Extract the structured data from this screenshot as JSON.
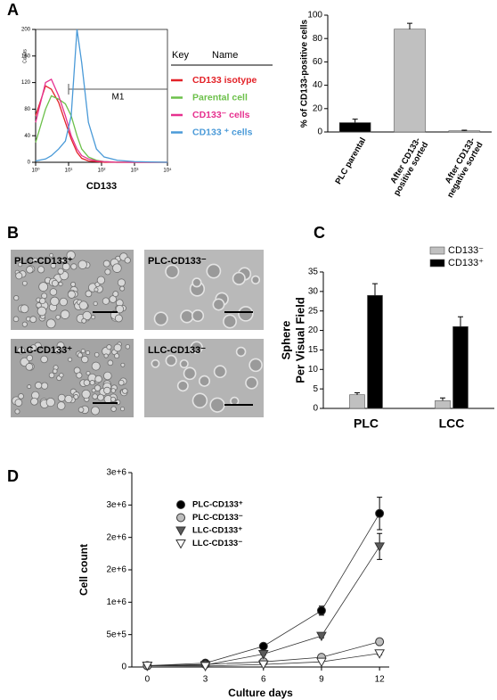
{
  "panel_labels": [
    "A",
    "B",
    "C",
    "D"
  ],
  "micrographs": [
    "PLC-CD133⁺",
    "PLC-CD133⁻",
    "LLC-CD133⁺",
    "LLC-CD133⁻"
  ],
  "chart_data": [
    {
      "type": "line",
      "xscale": "log",
      "xlabel": "CD133",
      "ylabel": "Counts",
      "x": [
        1,
        2,
        3,
        5,
        8,
        12,
        18,
        25,
        40,
        70,
        120,
        300,
        1000,
        10000
      ],
      "xlim": [
        1,
        10000
      ],
      "xticks": [
        {
          "value": 1,
          "label": "10⁰"
        },
        {
          "value": 10,
          "label": "10¹"
        },
        {
          "value": 100,
          "label": "10²"
        },
        {
          "value": 1000,
          "label": "10³"
        },
        {
          "value": 10000,
          "label": "10⁴"
        }
      ],
      "ylim": [
        0,
        200
      ],
      "yticks": [
        0,
        40,
        80,
        120,
        160,
        200
      ],
      "legend_headers": [
        "Key",
        "Name"
      ],
      "gate": {
        "label": "M1",
        "x": [
          10,
          10000
        ],
        "y": 110
      },
      "series": [
        {
          "name": "CD133 isotype",
          "color": "#e32228",
          "values": [
            70,
            115,
            110,
            90,
            60,
            35,
            15,
            6,
            2,
            1,
            0,
            0,
            0,
            0
          ]
        },
        {
          "name": "Parental cell",
          "color": "#6cc04a",
          "values": [
            30,
            80,
            100,
            95,
            88,
            70,
            40,
            20,
            8,
            3,
            1,
            0,
            0,
            0
          ]
        },
        {
          "name": "CD133⁻ cells",
          "color": "#e6308f",
          "values": [
            60,
            120,
            125,
            100,
            70,
            40,
            20,
            10,
            5,
            2,
            1,
            0,
            0,
            0
          ]
        },
        {
          "name": "CD133 ⁺ cells",
          "color": "#4a9ad8",
          "values": [
            2,
            5,
            10,
            20,
            32,
            70,
            200,
            150,
            60,
            20,
            8,
            3,
            1,
            0
          ]
        }
      ]
    },
    {
      "type": "bar",
      "ylabel": "% of CD133-positive cells",
      "categories": [
        "PLC parental",
        "After CD133-positive sorted",
        "After CD133-negative sorted"
      ],
      "values": [
        8,
        88,
        1
      ],
      "errors": [
        3,
        5,
        0.5
      ],
      "colors": [
        "#000000",
        "#c0c0c0",
        "#c0c0c0"
      ],
      "ylim": [
        0,
        100
      ],
      "yticks": [
        0,
        20,
        40,
        60,
        80,
        100
      ]
    },
    {
      "type": "bar",
      "ylabel": [
        "Sphere",
        "Per Visual Field"
      ],
      "categories": [
        "PLC",
        "LCC"
      ],
      "series": [
        {
          "name": "CD133⁻",
          "color": "#c0c0c0",
          "values": [
            3.5,
            2
          ],
          "errors": [
            0.5,
            0.7
          ]
        },
        {
          "name": "CD133⁺",
          "color": "#000000",
          "values": [
            29,
            21
          ],
          "errors": [
            3,
            2.5
          ]
        }
      ],
      "ylim": [
        0,
        35
      ],
      "yticks": [
        0,
        5,
        10,
        15,
        20,
        25,
        30,
        35
      ]
    },
    {
      "type": "line",
      "xlabel": "Culture days",
      "ylabel": "Cell count",
      "x": [
        0,
        3,
        6,
        9,
        12
      ],
      "xlim": [
        -0.8,
        12.5
      ],
      "xticks": [
        0,
        3,
        6,
        9,
        12
      ],
      "ylim": [
        0,
        3000000
      ],
      "yticks": [
        0,
        {
          "value": 500000,
          "label": "5e+5"
        },
        {
          "value": 1000000,
          "label": "1e+6"
        },
        {
          "value": 1500000,
          "label": "2e+6"
        },
        {
          "value": 2000000,
          "label": "2e+6"
        },
        {
          "value": 2500000,
          "label": "3e+6"
        },
        {
          "value": 3000000,
          "label": "3e+6"
        }
      ],
      "series": [
        {
          "name": "PLC-CD133⁺",
          "color": "#000000",
          "marker": "circle",
          "values": [
            20000,
            60000,
            320000,
            870000,
            2370000
          ],
          "errors": [
            5000,
            10000,
            20000,
            70000,
            250000
          ]
        },
        {
          "name": "PLC-CD133⁻",
          "color": "#bdbdbd",
          "marker": "circle",
          "values": [
            20000,
            40000,
            80000,
            150000,
            390000
          ],
          "errors": [
            5000,
            5000,
            10000,
            20000,
            30000
          ]
        },
        {
          "name": "LLC-CD133⁺",
          "color": "#5a5a5a",
          "marker": "triangle",
          "values": [
            20000,
            30000,
            200000,
            480000,
            1860000
          ],
          "errors": [
            5000,
            5000,
            15000,
            30000,
            200000
          ]
        },
        {
          "name": "LLC-CD133⁻",
          "color": "#ffffff",
          "marker": "triangle",
          "values": [
            20000,
            15000,
            40000,
            80000,
            210000
          ],
          "errors": [
            5000,
            5000,
            5000,
            10000,
            20000
          ]
        }
      ]
    }
  ]
}
